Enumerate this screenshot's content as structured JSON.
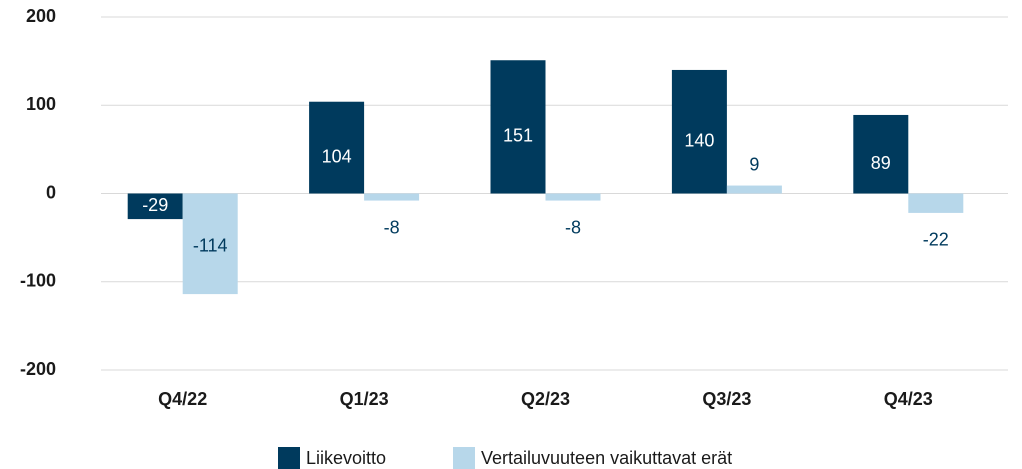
{
  "chart_data": {
    "type": "bar",
    "categories": [
      "Q4/22",
      "Q1/23",
      "Q2/23",
      "Q3/23",
      "Q4/23"
    ],
    "series": [
      {
        "name": "Liikevoitto",
        "color": "#003a5d",
        "values": [
          -29,
          104,
          151,
          140,
          89
        ]
      },
      {
        "name": "Vertailuvuuteen vaikuttavat erät",
        "color": "#b7d7ea",
        "values": [
          -114,
          -8,
          -8,
          9,
          -22
        ]
      }
    ],
    "ylim": [
      -200,
      200
    ],
    "yticks": [
      -200,
      -100,
      0,
      100,
      200
    ],
    "grid": true,
    "legend": "bottom"
  }
}
